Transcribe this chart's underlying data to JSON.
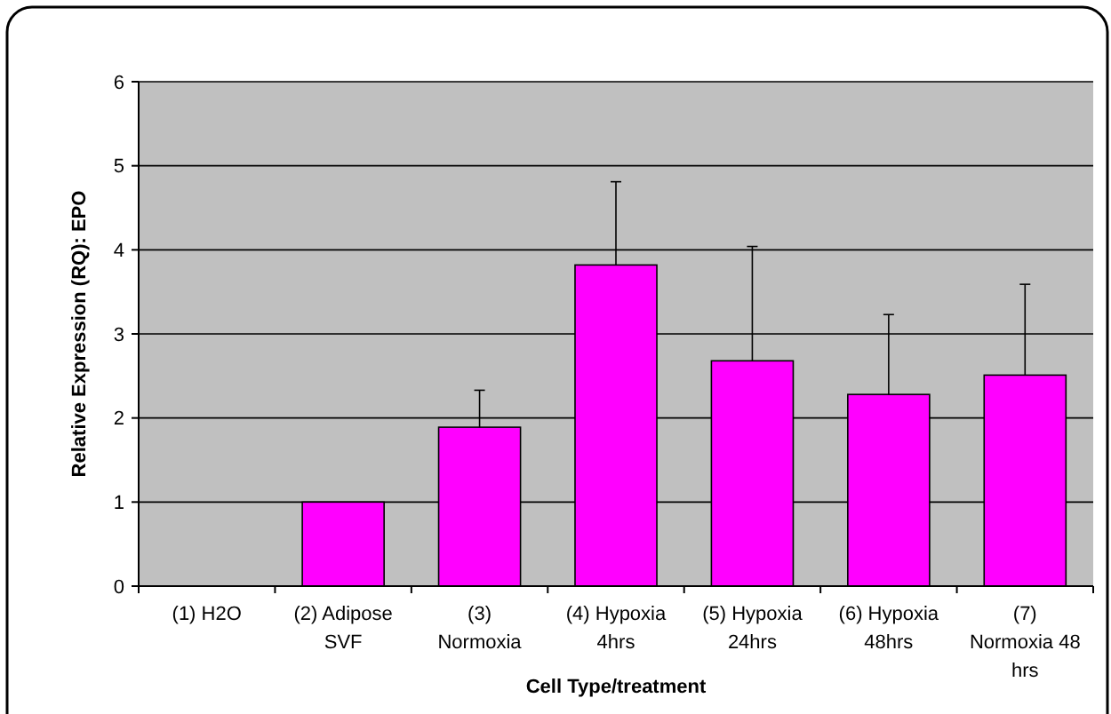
{
  "chart_data": {
    "type": "bar",
    "xlabel": "Cell Type/treatment",
    "ylabel": "Relative Expression (RQ): EPO",
    "categories": [
      "(1) H2O",
      "(2) Adipose SVF",
      "(3) Normoxia",
      "(4) Hypoxia 4hrs",
      "(5) Hypoxia 24hrs",
      "(6) Hypoxia 48hrs",
      "(7) Normoxia 48 hrs"
    ],
    "values": [
      null,
      1.0,
      1.89,
      3.82,
      2.68,
      2.28,
      2.51
    ],
    "errors": [
      null,
      null,
      [
        1.89,
        2.33
      ],
      [
        3.82,
        4.81
      ],
      [
        2.68,
        4.04
      ],
      [
        2.28,
        3.23
      ],
      [
        2.51,
        3.59
      ]
    ],
    "color": "#ff00ff",
    "ylim": [
      0,
      6
    ],
    "yticks": [
      0,
      1,
      2,
      3,
      4,
      5,
      6
    ],
    "grid": "y"
  }
}
